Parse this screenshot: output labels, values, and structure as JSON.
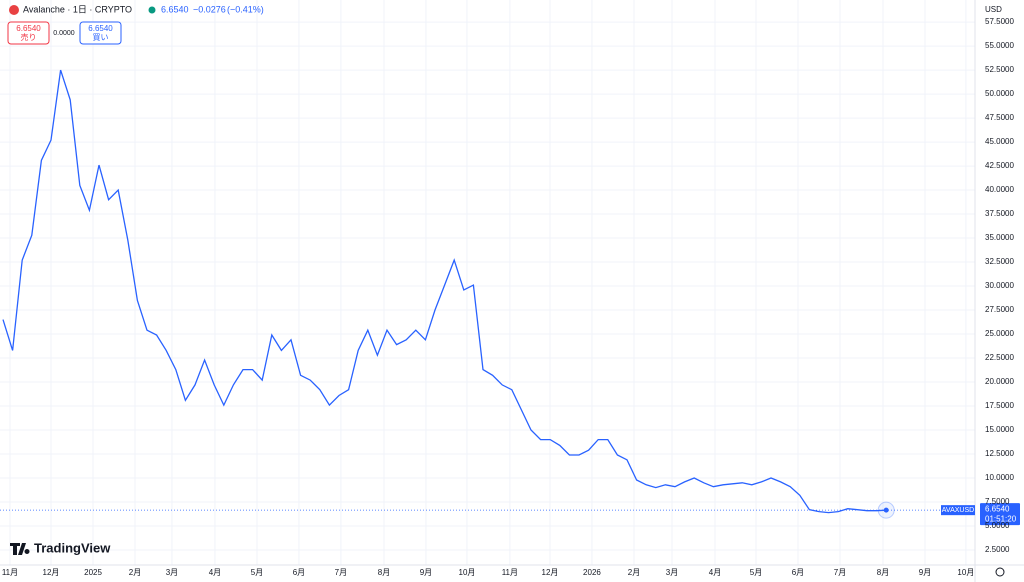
{
  "header": {
    "title": "Avalanche · 1日 · CRYPTO",
    "price": "6.6540",
    "change": "−0.0276",
    "change_pct": "(−0.41%)"
  },
  "order_panel": {
    "sell_price": "6.6540",
    "sell_label": "売り",
    "spread": "0.0000",
    "buy_price": "6.6540",
    "buy_label": "買い"
  },
  "currency": "USD",
  "price_tag": {
    "symbol": "AVAXUSD",
    "price": "6.6540",
    "countdown": "01:51:20"
  },
  "logo": "TradingView",
  "chart_data": {
    "type": "line",
    "grid": true,
    "x": [
      0,
      1,
      2,
      3,
      4,
      5,
      6,
      7,
      8,
      9,
      10,
      11,
      12,
      13,
      14,
      15,
      16,
      17,
      18,
      19,
      20,
      21,
      22,
      23,
      24,
      25,
      26,
      27,
      28,
      29,
      30,
      31,
      32,
      33,
      34,
      35,
      36,
      37,
      38,
      39,
      40,
      41,
      42,
      43,
      44,
      45,
      46,
      47,
      48,
      49,
      50,
      51,
      52,
      53,
      54,
      55,
      56,
      57,
      58,
      59,
      60,
      61,
      62,
      63,
      64,
      65,
      66,
      67,
      68,
      69,
      70,
      71,
      72,
      73,
      74,
      75,
      76,
      77,
      78,
      79,
      80,
      81,
      82,
      83,
      84,
      85,
      86,
      87,
      88,
      89,
      90,
      91,
      92
    ],
    "series": [
      {
        "name": "AVAXUSD",
        "color": "#2962ff",
        "values": [
          26.5,
          23.3,
          32.7,
          35.3,
          43.1,
          45.2,
          52.5,
          49.4,
          40.5,
          37.9,
          42.6,
          39.0,
          40.0,
          34.8,
          28.5,
          25.4,
          24.9,
          23.3,
          21.3,
          18.1,
          19.7,
          22.3,
          19.7,
          17.6,
          19.7,
          21.3,
          21.3,
          20.2,
          24.9,
          23.3,
          24.4,
          20.7,
          20.2,
          19.2,
          17.6,
          18.6,
          19.2,
          23.3,
          25.4,
          22.8,
          25.4,
          23.9,
          24.4,
          25.4,
          24.4,
          27.5,
          30.1,
          32.7,
          29.6,
          30.1,
          21.3,
          20.7,
          19.7,
          19.2,
          17.1,
          15.0,
          14.0,
          14.0,
          13.4,
          12.4,
          12.4,
          12.9,
          14.0,
          14.0,
          12.4,
          11.9,
          9.8,
          9.3,
          9.0,
          9.3,
          9.1,
          9.6,
          10.0,
          9.5,
          9.1,
          9.3,
          9.4,
          9.5,
          9.3,
          9.6,
          10.0,
          9.6,
          9.1,
          8.2,
          6.7,
          6.5,
          6.4,
          6.5,
          6.8,
          6.7,
          6.6,
          6.6,
          6.654
        ]
      }
    ],
    "xlim": [
      -0.31,
      101.25
    ],
    "xticks": [
      {
        "value": 0.73,
        "label": "11月"
      },
      {
        "value": 5.0,
        "label": "12月"
      },
      {
        "value": 9.38,
        "label": "2025"
      },
      {
        "value": 13.75,
        "label": "2月"
      },
      {
        "value": 17.6,
        "label": "3月"
      },
      {
        "value": 22.08,
        "label": "4月"
      },
      {
        "value": 26.46,
        "label": "5月"
      },
      {
        "value": 30.83,
        "label": "6月"
      },
      {
        "value": 35.2,
        "label": "7月"
      },
      {
        "value": 39.69,
        "label": "8月"
      },
      {
        "value": 44.06,
        "label": "9月"
      },
      {
        "value": 48.33,
        "label": "10月"
      },
      {
        "value": 52.8,
        "label": "11月"
      },
      {
        "value": 56.98,
        "label": "12月"
      },
      {
        "value": 61.35,
        "label": "2026"
      },
      {
        "value": 65.73,
        "label": "2月"
      },
      {
        "value": 69.69,
        "label": "3月"
      },
      {
        "value": 74.17,
        "label": "4月"
      },
      {
        "value": 78.44,
        "label": "5月"
      },
      {
        "value": 82.81,
        "label": "6月"
      },
      {
        "value": 87.19,
        "label": "7月"
      },
      {
        "value": 91.67,
        "label": "8月"
      },
      {
        "value": 96.04,
        "label": "9月"
      },
      {
        "value": 100.3,
        "label": "10月"
      }
    ],
    "ylim": [
      0.94,
      59.8
    ],
    "yticks": [
      {
        "value": 2.5,
        "label": "2.5000"
      },
      {
        "value": 5,
        "label": "5.0000"
      },
      {
        "value": 7.5,
        "label": "7.5000"
      },
      {
        "value": 10,
        "label": "10.0000"
      },
      {
        "value": 12.5,
        "label": "12.5000"
      },
      {
        "value": 15,
        "label": "15.0000"
      },
      {
        "value": 17.5,
        "label": "17.5000"
      },
      {
        "value": 20,
        "label": "20.0000"
      },
      {
        "value": 22.5,
        "label": "22.5000"
      },
      {
        "value": 25,
        "label": "25.0000"
      },
      {
        "value": 27.5,
        "label": "27.5000"
      },
      {
        "value": 30,
        "label": "30.0000"
      },
      {
        "value": 32.5,
        "label": "32.5000"
      },
      {
        "value": 35,
        "label": "35.0000"
      },
      {
        "value": 37.5,
        "label": "37.5000"
      },
      {
        "value": 40,
        "label": "40.0000"
      },
      {
        "value": 42.5,
        "label": "42.5000"
      },
      {
        "value": 45,
        "label": "45.0000"
      },
      {
        "value": 47.5,
        "label": "47.5000"
      },
      {
        "value": 50,
        "label": "50.0000"
      },
      {
        "value": 52.5,
        "label": "52.5000"
      },
      {
        "value": 55,
        "label": "55.0000"
      },
      {
        "value": 57.5,
        "label": "57.5000"
      }
    ]
  }
}
